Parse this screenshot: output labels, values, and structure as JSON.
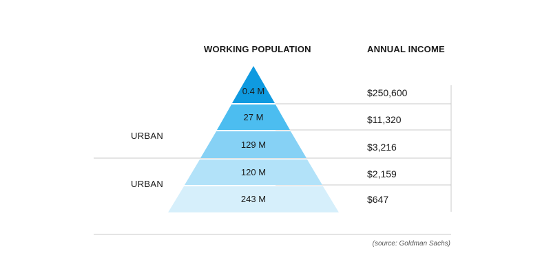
{
  "headers": {
    "population": "WORKING POPULATION",
    "income": "ANNUAL INCOME"
  },
  "tiers": [
    {
      "population": "0.4 M",
      "income": "$250,600",
      "color": "#0f9ae0"
    },
    {
      "population": "27 M",
      "income": "$11,320",
      "color": "#4cbdf0"
    },
    {
      "population": "129 M",
      "income": "$3,216",
      "color": "#86d1f5"
    },
    {
      "population": "120 M",
      "income": "$2,159",
      "color": "#b2e2f9"
    },
    {
      "population": "243 M",
      "income": "$647",
      "color": "#d6effb"
    }
  ],
  "segments": {
    "upper": "URBAN",
    "lower": "URBAN"
  },
  "source": "(source: Goldman Sachs)",
  "colors": {
    "divider": "#c8c8c8",
    "text": "#1a1a1a"
  }
}
